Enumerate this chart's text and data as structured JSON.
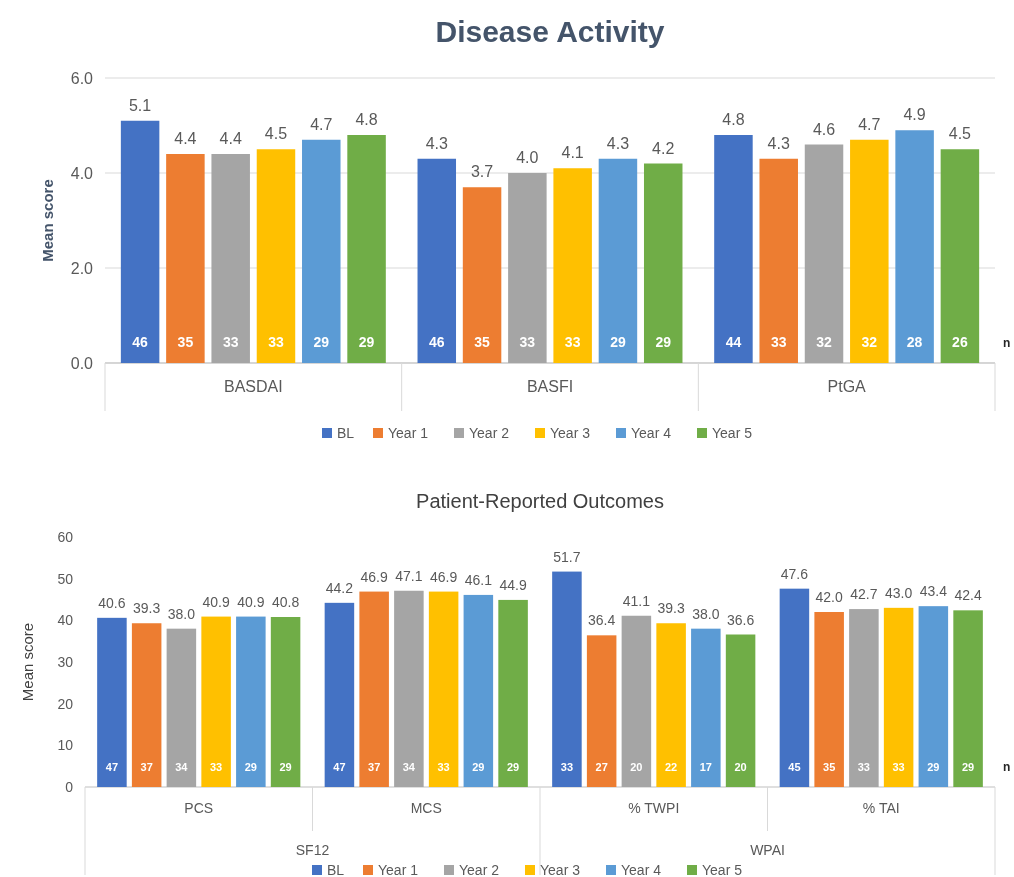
{
  "chart_data": [
    {
      "type": "bar",
      "title": "Disease Activity",
      "ylabel": "Mean score",
      "categories": [
        "BASDAI",
        "BASFI",
        "PtGA"
      ],
      "ylim": [
        0,
        6
      ],
      "yticks": [
        {
          "value": 0,
          "label": "0.0"
        },
        {
          "value": 2,
          "label": "2.0"
        },
        {
          "value": 4,
          "label": "4.0"
        },
        {
          "value": 6,
          "label": "6.0"
        }
      ],
      "grid": "y",
      "legend": "bottom",
      "series": [
        {
          "name": "BL",
          "color": "#4472c4",
          "values": [
            5.1,
            4.3,
            4.8
          ],
          "value_labels": [
            "5.1",
            "4.3",
            "4.8"
          ]
        },
        {
          "name": "Year 1",
          "color": "#ed7d31",
          "values": [
            4.4,
            3.7,
            4.3
          ],
          "value_labels": [
            "4.4",
            "3.7",
            "4.3"
          ]
        },
        {
          "name": "Year 2",
          "color": "#a5a5a5",
          "values": [
            4.4,
            4.0,
            4.6
          ],
          "value_labels": [
            "4.4",
            "4.0",
            "4.6"
          ]
        },
        {
          "name": "Year 3",
          "color": "#ffc000",
          "values": [
            4.5,
            4.1,
            4.7
          ],
          "value_labels": [
            "4.5",
            "4.1",
            "4.7"
          ]
        },
        {
          "name": "Year 4",
          "color": "#5b9bd5",
          "values": [
            4.7,
            4.3,
            4.9
          ],
          "value_labels": [
            "4.7",
            "4.3",
            "4.9"
          ]
        },
        {
          "name": "Year 5",
          "color": "#70ad47",
          "values": [
            4.8,
            4.2,
            4.5
          ],
          "value_labels": [
            "4.8",
            "4.2",
            "4.5"
          ]
        }
      ],
      "annotations": [
        "46",
        "35",
        "33",
        "33",
        "29",
        "29",
        "46",
        "35",
        "33",
        "33",
        "29",
        "29",
        "44",
        "33",
        "32",
        "32",
        "28",
        "26",
        "n"
      ]
    },
    {
      "type": "bar",
      "title": "Patient-Reported Outcomes",
      "ylabel": "Mean score",
      "categories": [
        "PCS",
        "MCS",
        "% TWPI",
        "% TAI"
      ],
      "ylim": [
        0,
        60
      ],
      "yticks": [
        0,
        10,
        20,
        30,
        40,
        50,
        60
      ],
      "legend": "bottom",
      "series": [
        {
          "name": "BL",
          "color": "#4472c4",
          "values": [
            40.6,
            44.2,
            51.7,
            47.6
          ],
          "value_labels": [
            "40.6",
            "44.2",
            "51.7",
            "47.6"
          ]
        },
        {
          "name": "Year 1",
          "color": "#ed7d31",
          "values": [
            39.3,
            46.9,
            36.4,
            42.0
          ],
          "value_labels": [
            "39.3",
            "46.9",
            "36.4",
            "42.0"
          ]
        },
        {
          "name": "Year 2",
          "color": "#a5a5a5",
          "values": [
            38.0,
            47.1,
            41.1,
            42.7
          ],
          "value_labels": [
            "38.0",
            "47.1",
            "41.1",
            "42.7"
          ]
        },
        {
          "name": "Year 3",
          "color": "#ffc000",
          "values": [
            40.9,
            46.9,
            39.3,
            43.0
          ],
          "value_labels": [
            "40.9",
            "46.9",
            "39.3",
            "43.0"
          ]
        },
        {
          "name": "Year 4",
          "color": "#5b9bd5",
          "values": [
            40.9,
            46.1,
            38.0,
            43.4
          ],
          "value_labels": [
            "40.9",
            "46.1",
            "38.0",
            "43.4"
          ]
        },
        {
          "name": "Year 5",
          "color": "#70ad47",
          "values": [
            40.8,
            44.9,
            36.6,
            42.4
          ],
          "value_labels": [
            "40.8",
            "44.9",
            "36.6",
            "42.4"
          ]
        }
      ],
      "annotations": [
        "47",
        "37",
        "34",
        "33",
        "29",
        "29",
        "47",
        "37",
        "34",
        "33",
        "29",
        "29",
        "33",
        "27",
        "20",
        "22",
        "17",
        "20",
        "45",
        "35",
        "33",
        "33",
        "29",
        "29",
        "n",
        "SF12",
        "WPAI"
      ]
    }
  ]
}
